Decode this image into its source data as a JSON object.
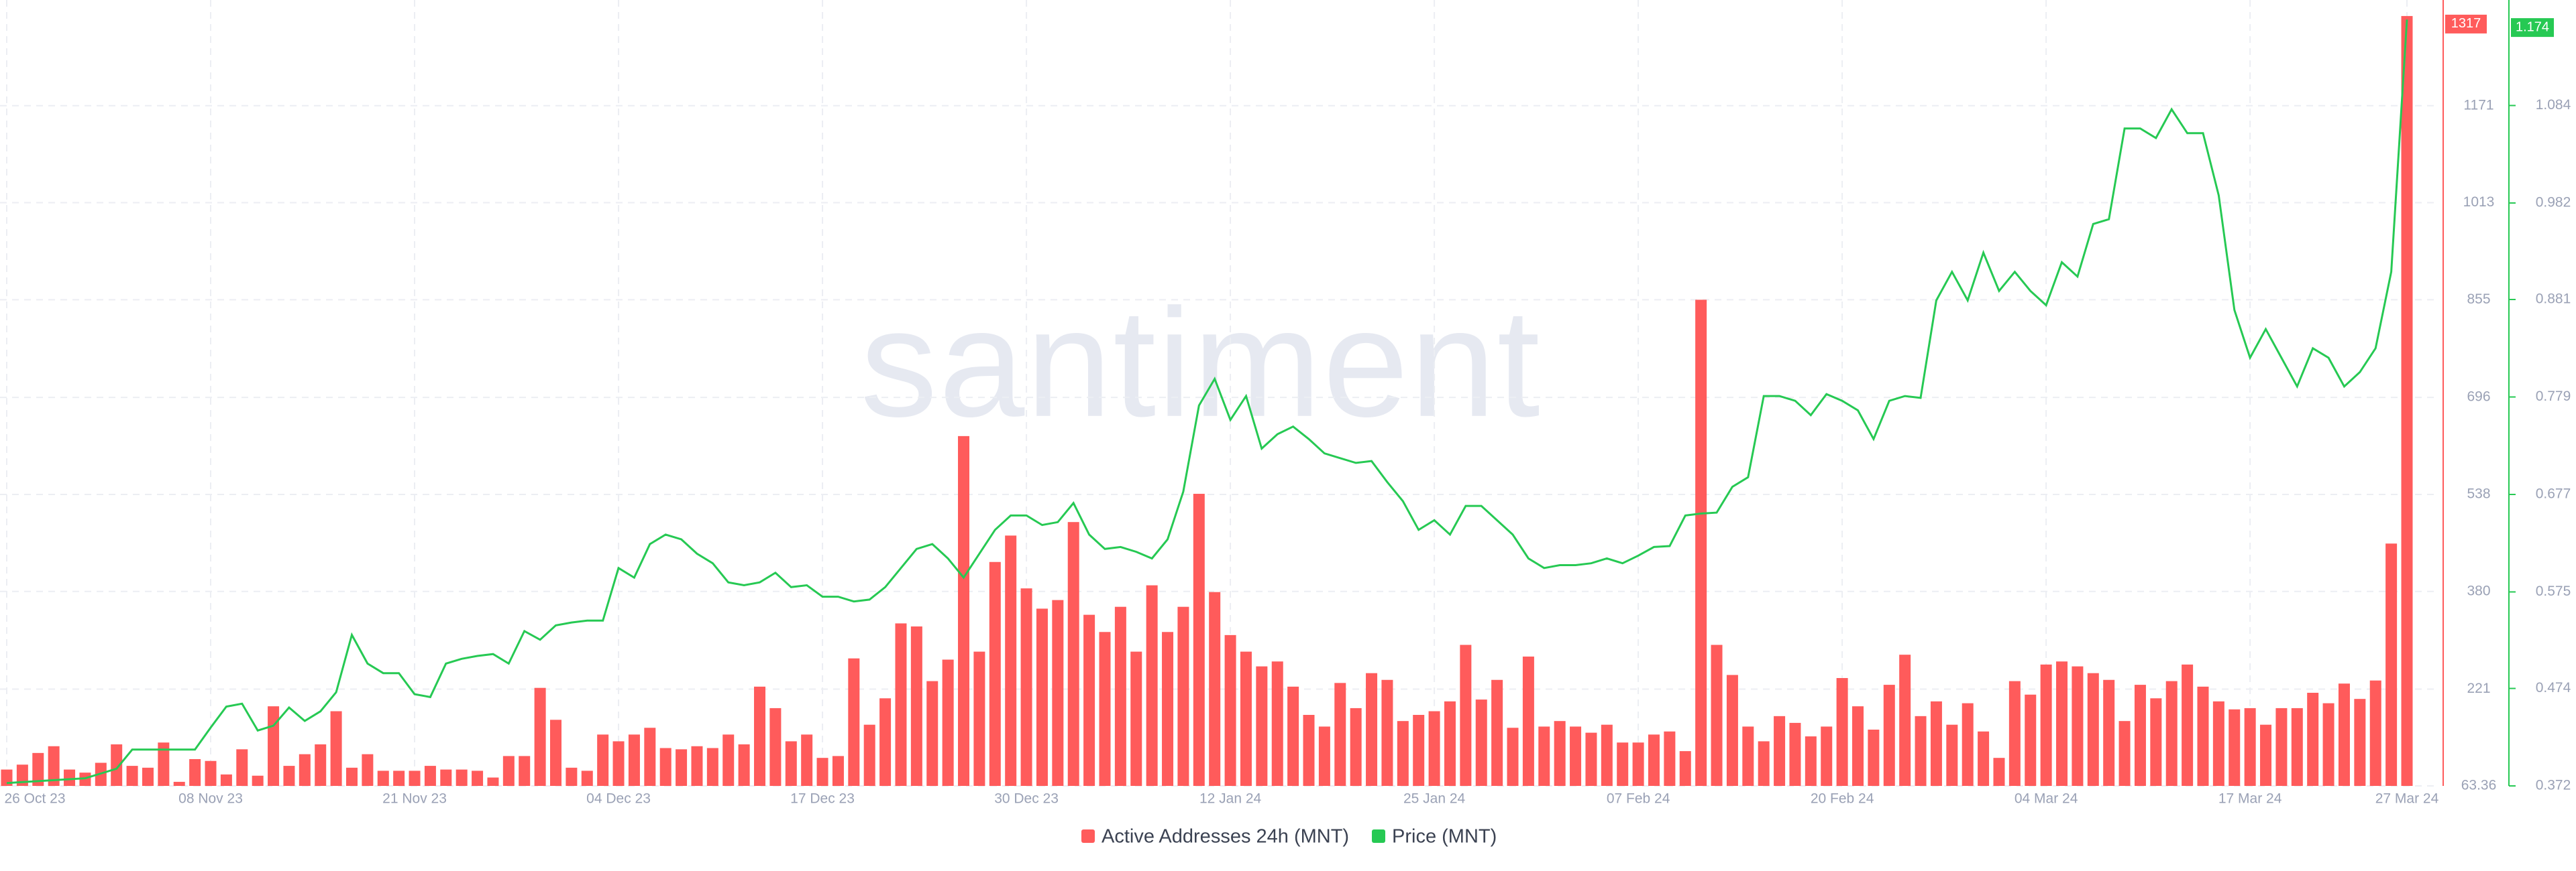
{
  "chart_data": {
    "type": "bar-line",
    "watermark": "santiment",
    "categories": [
      "26 Oct 23",
      null,
      null,
      null,
      null,
      null,
      null,
      null,
      null,
      null,
      null,
      null,
      null,
      "08 Nov 23",
      null,
      null,
      null,
      null,
      null,
      null,
      null,
      null,
      null,
      null,
      null,
      null,
      "21 Nov 23",
      null,
      null,
      null,
      null,
      null,
      null,
      null,
      null,
      null,
      null,
      null,
      null,
      "04 Dec 23",
      null,
      null,
      null,
      null,
      null,
      null,
      null,
      null,
      null,
      null,
      null,
      null,
      "17 Dec 23",
      null,
      null,
      null,
      null,
      null,
      null,
      null,
      null,
      null,
      null,
      null,
      null,
      "30 Dec 23",
      null,
      null,
      null,
      null,
      null,
      null,
      null,
      null,
      null,
      null,
      null,
      null,
      "12 Jan 24",
      null,
      null,
      null,
      null,
      null,
      null,
      null,
      null,
      null,
      null,
      null,
      null,
      "25 Jan 24",
      null,
      null,
      null,
      null,
      null,
      null,
      null,
      null,
      null,
      null,
      null,
      null,
      "07 Feb 24",
      null,
      null,
      null,
      null,
      null,
      null,
      null,
      null,
      null,
      null,
      null,
      null,
      "20 Feb 24",
      null,
      null,
      null,
      null,
      null,
      null,
      null,
      null,
      null,
      null,
      null,
      null,
      "04 Mar 24",
      null,
      null,
      null,
      null,
      null,
      null,
      null,
      null,
      null,
      null,
      null,
      null,
      "17 Mar 24",
      null,
      null,
      null,
      null,
      null,
      null,
      null,
      null,
      null,
      "27 Mar 24"
    ],
    "series": [
      {
        "name": "Active Addresses 24h (MNT)",
        "color": "#ff5b5b",
        "type": "bar",
        "values": [
          90,
          98,
          117,
          128,
          90,
          85,
          101,
          131,
          96,
          93,
          134,
          70,
          107,
          104,
          82,
          123,
          80,
          193,
          96,
          115,
          131,
          185,
          93,
          115,
          88,
          88,
          88,
          96,
          90,
          90,
          88,
          77,
          112,
          112,
          223,
          171,
          93,
          88,
          147,
          136,
          147,
          158,
          125,
          123,
          128,
          125,
          147,
          131,
          225,
          190,
          136,
          147,
          109,
          112,
          271,
          163,
          206,
          328,
          323,
          234,
          269,
          633,
          282,
          428,
          471,
          385,
          352,
          366,
          493,
          342,
          314,
          355,
          282,
          390,
          314,
          355,
          539,
          379,
          309,
          282,
          258,
          266,
          225,
          179,
          160,
          231,
          190,
          247,
          236,
          169,
          179,
          185,
          201,
          293,
          204,
          236,
          158,
          274,
          160,
          169,
          160,
          150,
          163,
          134,
          134,
          147,
          152,
          120,
          855,
          293,
          244,
          160,
          136,
          177,
          166,
          144,
          160,
          239,
          193,
          155,
          228,
          277,
          177,
          201,
          163,
          198,
          152,
          109,
          234,
          212,
          261,
          266,
          258,
          247,
          236,
          169,
          228,
          206,
          234,
          261,
          225,
          201,
          188,
          190,
          163,
          190,
          190,
          215,
          198,
          230,
          205,
          235,
          458,
          1317
        ]
      },
      {
        "name": "Price (MNT)",
        "color": "#26c953",
        "type": "line",
        "axis": "y2",
        "values": [
          0.375,
          0.376,
          0.377,
          0.378,
          0.379,
          0.38,
          0.385,
          0.39,
          0.41,
          0.41,
          0.41,
          0.41,
          0.41,
          0.433,
          0.455,
          0.458,
          0.43,
          0.435,
          0.454,
          0.44,
          0.45,
          0.47,
          0.53,
          0.5,
          0.49,
          0.49,
          0.468,
          0.465,
          0.5,
          0.505,
          0.508,
          0.51,
          0.5,
          0.534,
          0.525,
          0.54,
          0.543,
          0.545,
          0.545,
          0.6,
          0.59,
          0.625,
          0.635,
          0.63,
          0.615,
          0.605,
          0.585,
          0.582,
          0.585,
          0.595,
          0.58,
          0.582,
          0.57,
          0.57,
          0.565,
          0.567,
          0.58,
          0.6,
          0.62,
          0.625,
          0.61,
          0.59,
          0.615,
          0.64,
          0.655,
          0.655,
          0.645,
          0.648,
          0.668,
          0.635,
          0.62,
          0.622,
          0.617,
          0.61,
          0.63,
          0.68,
          0.77,
          0.798,
          0.755,
          0.78,
          0.725,
          0.74,
          0.748,
          0.735,
          0.72,
          0.715,
          0.71,
          0.712,
          0.69,
          0.67,
          0.64,
          0.65,
          0.635,
          0.665,
          0.665,
          0.65,
          0.635,
          0.61,
          0.6,
          0.603,
          0.603,
          0.605,
          0.61,
          0.605,
          0.613,
          0.622,
          0.623,
          0.655,
          0.657,
          0.658,
          0.685,
          0.695,
          0.78,
          0.78,
          0.775,
          0.76,
          0.782,
          0.775,
          0.765,
          0.735,
          0.775,
          0.78,
          0.778,
          0.88,
          0.91,
          0.88,
          0.93,
          0.89,
          0.91,
          0.89,
          0.875,
          0.92,
          0.905,
          0.96,
          0.965,
          1.06,
          1.06,
          1.05,
          1.08,
          1.055,
          1.055,
          0.99,
          0.87,
          0.82,
          0.85,
          0.82,
          0.79,
          0.83,
          0.82,
          0.79,
          0.805,
          0.83,
          0.91,
          1.174
        ]
      }
    ],
    "ylim": [
      63.36,
      1330
    ],
    "yticks": [
      63.36,
      221,
      380,
      538,
      696,
      855,
      1013,
      1171
    ],
    "y2lim": [
      0.372,
      1.186
    ],
    "y2ticks": [
      0.372,
      0.474,
      0.575,
      0.677,
      0.779,
      0.881,
      0.982,
      1.084
    ],
    "grid": true
  }
}
